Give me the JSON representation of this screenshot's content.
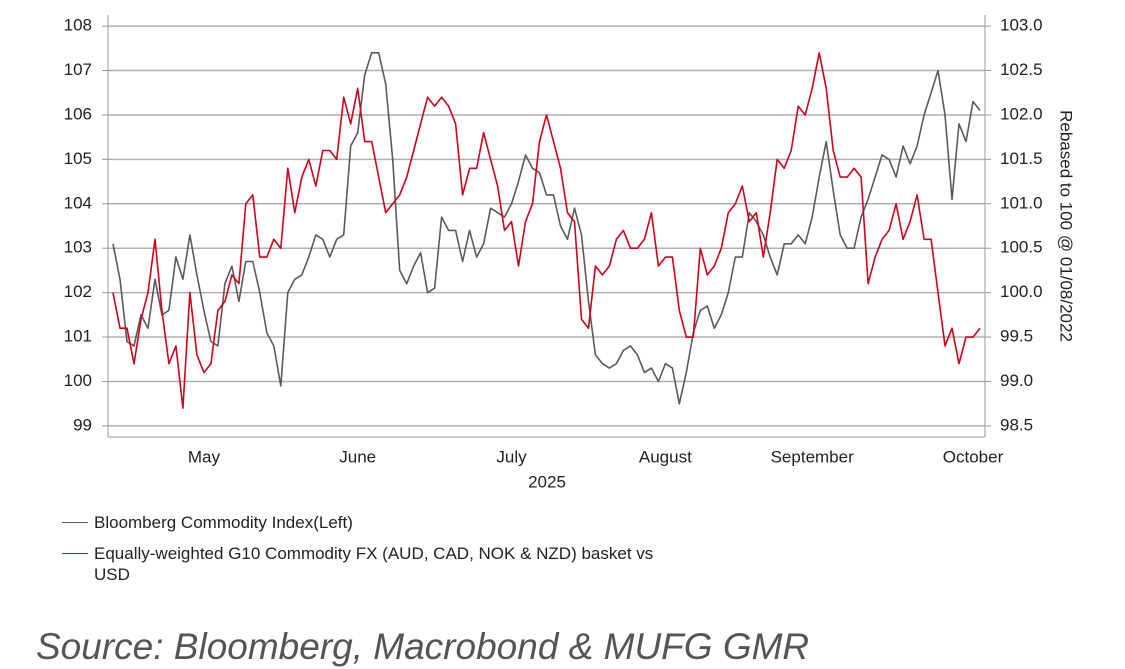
{
  "chart_data": {
    "type": "line",
    "categories": [
      null,
      null,
      null,
      null,
      null,
      null,
      null,
      null,
      null,
      null,
      null,
      null,
      null,
      "May",
      null,
      null,
      null,
      null,
      null,
      null,
      null,
      null,
      null,
      null,
      null,
      null,
      null,
      null,
      null,
      null,
      null,
      null,
      null,
      null,
      null,
      "June",
      null,
      null,
      null,
      null,
      null,
      null,
      null,
      null,
      null,
      null,
      null,
      null,
      null,
      null,
      null,
      null,
      null,
      null,
      null,
      null,
      null,
      "July",
      null,
      null,
      null,
      null,
      null,
      null,
      null,
      null,
      null,
      null,
      null,
      null,
      null,
      null,
      null,
      null,
      null,
      null,
      null,
      null,
      null,
      "August",
      null,
      null,
      null,
      null,
      null,
      null,
      null,
      null,
      null,
      null,
      null,
      null,
      null,
      null,
      null,
      null,
      null,
      null,
      null,
      null,
      "September",
      null,
      null,
      null,
      null,
      null,
      null,
      null,
      null,
      null,
      null,
      null,
      null,
      null,
      null,
      null,
      null,
      null,
      null,
      null,
      null,
      null,
      null,
      "October",
      null
    ],
    "xlabel": "2025",
    "y2label": "Rebased to 100 @ 01/08/2022",
    "series": [
      {
        "name": "Bloomberg Commodity Index(Left)",
        "color": "#5a5a5a",
        "axis": "y",
        "values": [
          103.1,
          102.3,
          100.9,
          100.8,
          101.5,
          101.2,
          102.3,
          101.5,
          101.6,
          102.8,
          102.3,
          103.3,
          102.4,
          101.6,
          100.9,
          100.8,
          102.2,
          102.6,
          101.8,
          102.7,
          102.7,
          102.0,
          101.1,
          100.8,
          99.9,
          102.0,
          102.3,
          102.4,
          102.8,
          103.3,
          103.2,
          102.8,
          103.2,
          103.3,
          105.3,
          105.6,
          106.9,
          107.4,
          107.4,
          106.7,
          105.0,
          102.5,
          102.2,
          102.6,
          102.9,
          102.0,
          102.1,
          103.7,
          103.4,
          103.4,
          102.7,
          103.4,
          102.8,
          103.1,
          103.9,
          103.8,
          103.7,
          104.0,
          104.5,
          105.1,
          104.8,
          104.7,
          104.2,
          104.2,
          103.5,
          103.2,
          103.9,
          103.3,
          101.8,
          100.6,
          100.4,
          100.3,
          100.4,
          100.7,
          100.8,
          100.6,
          100.2,
          100.3,
          100.0,
          100.4,
          100.3,
          99.5,
          100.2,
          101.1,
          101.6,
          101.7,
          101.2,
          101.5,
          102.0,
          102.8,
          102.8,
          103.8,
          103.6,
          103.3,
          102.8,
          102.4,
          103.1,
          103.1,
          103.3,
          103.1,
          103.7,
          104.6,
          105.4,
          104.3,
          103.3,
          103.0,
          103.0,
          103.7,
          104.1,
          104.6,
          105.1,
          105.0,
          104.6,
          105.3,
          104.9,
          105.3,
          106.0,
          106.5,
          107.0,
          106.0,
          104.1,
          105.8,
          105.4,
          106.3,
          106.1
        ]
      },
      {
        "name": "Equally-weighted G10 Commodity FX (AUD, CAD, NOK & NZD) basket vs USD",
        "color": "#d0021b",
        "axis": "y2",
        "values": [
          100.0,
          99.6,
          99.6,
          99.2,
          99.7,
          100.0,
          100.6,
          99.8,
          99.2,
          99.4,
          98.7,
          100.0,
          99.3,
          99.1,
          99.2,
          99.8,
          99.9,
          100.2,
          100.1,
          101.0,
          101.1,
          100.4,
          100.4,
          100.6,
          100.5,
          101.4,
          100.9,
          101.3,
          101.5,
          101.2,
          101.6,
          101.6,
          101.5,
          102.2,
          101.9,
          102.3,
          101.7,
          101.7,
          101.3,
          100.9,
          101.0,
          101.1,
          101.3,
          101.6,
          101.9,
          102.2,
          102.1,
          102.2,
          102.1,
          101.9,
          101.1,
          101.4,
          101.4,
          101.8,
          101.5,
          101.2,
          100.7,
          100.8,
          100.3,
          100.8,
          101.0,
          101.7,
          102.0,
          101.7,
          101.4,
          100.9,
          100.8,
          99.7,
          99.6,
          100.3,
          100.2,
          100.3,
          100.6,
          100.7,
          100.5,
          100.5,
          100.6,
          100.9,
          100.3,
          100.4,
          100.4,
          99.8,
          99.5,
          99.5,
          100.5,
          100.2,
          100.3,
          100.5,
          100.9,
          101.0,
          101.2,
          100.8,
          100.9,
          100.4,
          100.9,
          101.5,
          101.4,
          101.6,
          102.1,
          102.0,
          102.3,
          102.7,
          102.3,
          101.6,
          101.3,
          101.3,
          101.4,
          101.3,
          100.1,
          100.4,
          100.6,
          100.7,
          101.0,
          100.6,
          100.8,
          101.1,
          100.6,
          100.6,
          100.0,
          99.4,
          99.6,
          99.2,
          99.5,
          99.5,
          99.6
        ]
      }
    ],
    "ylim": [
      98.75,
      108.25
    ],
    "yticks": [
      99,
      100,
      101,
      102,
      103,
      104,
      105,
      106,
      107,
      108
    ],
    "y2lim": [
      98.375,
      103.125
    ],
    "y2ticks": [
      98.5,
      {
        "value": 99,
        "label": "99.0"
      },
      99.5,
      {
        "value": 100,
        "label": "100.0"
      },
      100.5,
      {
        "value": 101,
        "label": "101.0"
      },
      101.5,
      {
        "value": 102,
        "label": "102.0"
      },
      102.5,
      {
        "value": 103,
        "label": "103.0"
      }
    ],
    "grid": true,
    "source": "Source: Bloomberg, Macrobond & MUFG GMR"
  }
}
